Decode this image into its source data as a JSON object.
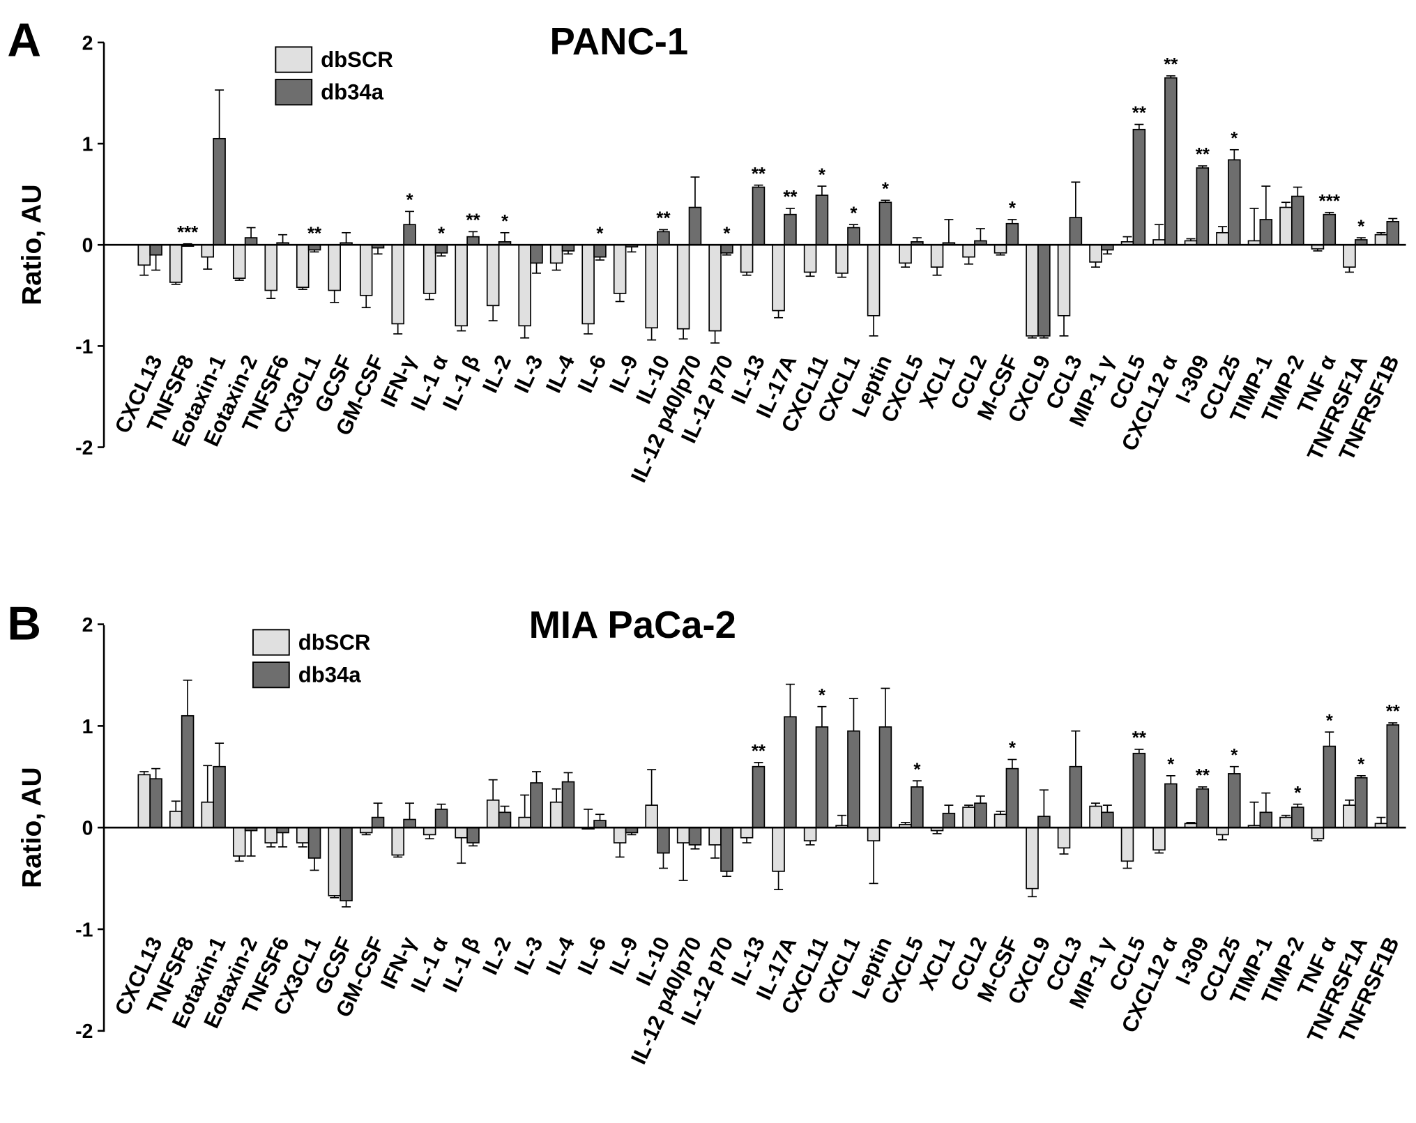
{
  "colors": {
    "dbSCR": "#e0e0e0",
    "db34a": "#6e6e6e",
    "edge": "#000000"
  },
  "chart_data": [
    {
      "type": "bar",
      "panel": "A",
      "title": "PANC-1",
      "ylabel": "Ratio, AU",
      "ylim": [
        -2,
        2
      ],
      "yticks": [
        -2,
        -1,
        0,
        1,
        2
      ],
      "legend_position": "top-left",
      "categories": [
        "CXCL13",
        "TNFSF8",
        "Eotaxin-1",
        "Eotaxin-2",
        "TNFSF6",
        "CX3CL1",
        "GCSF",
        "GM-CSF",
        "IFN-γ",
        "IL-1 α",
        "IL-1 β",
        "IL-2",
        "IL-3",
        "IL-4",
        "IL-6",
        "IL-9",
        "IL-10",
        "IL-12 p40/p70",
        "IL-12 p70",
        "IL-13",
        "IL-17A",
        "CXCL11",
        "CXCL1",
        "Leptin",
        "CXCL5",
        "XCL1",
        "CCL2",
        "M-CSF",
        "CXCL9",
        "CCL3",
        "MIP-1 γ",
        "CCL5",
        "CXCL12 α",
        "I-309",
        "CCL25",
        "TIMP-1",
        "TIMP-2",
        "TNF α",
        "TNFRSF1A",
        "TNFRSF1B"
      ],
      "series": [
        {
          "name": "dbSCR",
          "values": [
            -0.2,
            -0.37,
            -0.12,
            -0.33,
            -0.45,
            -0.42,
            -0.45,
            -0.5,
            -0.78,
            -0.48,
            -0.8,
            -0.6,
            -0.8,
            -0.18,
            -0.78,
            -0.48,
            -0.82,
            -0.83,
            -0.85,
            -0.27,
            -0.65,
            -0.27,
            -0.28,
            -0.7,
            -0.18,
            -0.22,
            -0.12,
            -0.08,
            -0.9,
            -0.7,
            -0.17,
            0.03,
            0.05,
            0.04,
            0.12,
            0.04,
            0.37,
            -0.04,
            -0.22,
            0.1
          ],
          "errors": [
            0.1,
            0.02,
            0.12,
            0.02,
            0.08,
            0.02,
            0.12,
            0.12,
            0.1,
            0.06,
            0.05,
            0.15,
            0.12,
            0.07,
            0.1,
            0.08,
            0.12,
            0.1,
            0.12,
            0.03,
            0.07,
            0.04,
            0.04,
            0.2,
            0.04,
            0.08,
            0.07,
            0.02,
            0.02,
            0.2,
            0.05,
            0.05,
            0.15,
            0.02,
            0.06,
            0.32,
            0.05,
            0.02,
            0.05,
            0.02
          ]
        },
        {
          "name": "db34a",
          "values": [
            -0.1,
            0,
            1.05,
            0.07,
            0.02,
            -0.05,
            0.02,
            -0.03,
            0.2,
            -0.08,
            0.08,
            0.03,
            -0.18,
            -0.06,
            -0.12,
            -0.02,
            0.13,
            0.37,
            -0.08,
            0.57,
            0.3,
            0.49,
            0.17,
            0.42,
            0.03,
            0.02,
            0.04,
            0.21,
            -0.9,
            0.27,
            -0.05,
            1.14,
            1.65,
            0.76,
            0.84,
            0.25,
            0.48,
            0.3,
            0.05,
            0.23
          ],
          "errors": [
            0.15,
            0.01,
            0.48,
            0.1,
            0.08,
            0.02,
            0.1,
            0.06,
            0.13,
            0.03,
            0.05,
            0.09,
            0.1,
            0.03,
            0.03,
            0.05,
            0.02,
            0.3,
            0.02,
            0.02,
            0.06,
            0.09,
            0.03,
            0.02,
            0.04,
            0.23,
            0.12,
            0.04,
            0.02,
            0.35,
            0.04,
            0.05,
            0.02,
            0.02,
            0.1,
            0.33,
            0.09,
            0.02,
            0.02,
            0.03
          ]
        }
      ],
      "significance": [
        "",
        "***",
        "",
        "",
        "",
        "**",
        "",
        "",
        "*",
        "*",
        "**",
        "*",
        "",
        "",
        "*",
        "",
        "**",
        "",
        "*",
        "**",
        "**",
        "*",
        "*",
        "*",
        "",
        "",
        "",
        "*",
        "",
        "",
        "",
        "**",
        "**",
        "**",
        "*",
        "",
        "",
        "***",
        "*",
        ""
      ]
    },
    {
      "type": "bar",
      "panel": "B",
      "title": "MIA PaCa-2",
      "ylabel": "Ratio, AU",
      "ylim": [
        -2,
        2
      ],
      "yticks": [
        -2,
        -1,
        0,
        1,
        2
      ],
      "legend_position": "top-left",
      "categories": [
        "CXCL13",
        "TNFSF8",
        "Eotaxin-1",
        "Eotaxin-2",
        "TNFSF6",
        "CX3CL1",
        "GCSF",
        "GM-CSF",
        "IFN-γ",
        "IL-1 α",
        "IL-1 β",
        "IL-2",
        "IL-3",
        "IL-4",
        "IL-6",
        "IL-9",
        "IL-10",
        "IL-12 p40/p70",
        "IL-12 p70",
        "IL-13",
        "IL-17A",
        "CXCL11",
        "CXCL1",
        "Leptin",
        "CXCL5",
        "XCL1",
        "CCL2",
        "M-CSF",
        "CXCL9",
        "CCL3",
        "MIP-1 γ",
        "CCL5",
        "CXCL12 α",
        "I-309",
        "CCL25",
        "TIMP-1",
        "TIMP-2",
        "TNF α",
        "TNFRSF1A",
        "TNFRSF1B"
      ],
      "series": [
        {
          "name": "dbSCR",
          "values": [
            0.52,
            0.16,
            0.25,
            -0.28,
            -0.15,
            -0.15,
            -0.67,
            -0.05,
            -0.27,
            -0.07,
            -0.1,
            0.27,
            0.1,
            0.25,
            0,
            -0.15,
            0.22,
            -0.15,
            -0.17,
            -0.1,
            -0.43,
            -0.13,
            0.02,
            -0.13,
            0.03,
            -0.03,
            0.2,
            0.13,
            -0.6,
            -0.2,
            0.21,
            -0.33,
            -0.22,
            0.04,
            -0.07,
            0.02,
            0.1,
            -0.11,
            0.22,
            0.04
          ],
          "errors": [
            0.03,
            0.1,
            0.36,
            0.05,
            0.04,
            0.04,
            0.02,
            0.02,
            0.02,
            0.04,
            0.25,
            0.2,
            0.22,
            0.13,
            0.18,
            0.14,
            0.35,
            0.37,
            0.13,
            0.05,
            0.18,
            0.04,
            0.1,
            0.42,
            0.02,
            0.03,
            0.02,
            0.03,
            0.08,
            0.06,
            0.03,
            0.07,
            0.03,
            0.01,
            0.05,
            0.23,
            0.02,
            0.02,
            0.05,
            0.06
          ]
        },
        {
          "name": "db34a",
          "values": [
            0.48,
            1.1,
            0.6,
            -0.03,
            -0.05,
            -0.3,
            -0.72,
            0.1,
            0.08,
            0.18,
            -0.15,
            0.15,
            0.44,
            0.45,
            0.07,
            -0.05,
            -0.25,
            -0.17,
            -0.43,
            0.6,
            1.09,
            0.99,
            0.95,
            0.99,
            0.4,
            0.14,
            0.24,
            0.58,
            0.11,
            0.6,
            0.15,
            0.73,
            0.43,
            0.38,
            0.53,
            0.15,
            0.2,
            0.8,
            0.49,
            1.01
          ],
          "errors": [
            0.1,
            0.35,
            0.23,
            0.25,
            0.14,
            0.12,
            0.06,
            0.14,
            0.16,
            0.05,
            0.03,
            0.06,
            0.11,
            0.09,
            0.06,
            0.02,
            0.15,
            0.04,
            0.05,
            0.04,
            0.32,
            0.2,
            0.32,
            0.38,
            0.06,
            0.08,
            0.07,
            0.09,
            0.26,
            0.35,
            0.07,
            0.04,
            0.08,
            0.02,
            0.07,
            0.19,
            0.03,
            0.14,
            0.02,
            0.02
          ]
        }
      ],
      "significance": [
        "",
        "",
        "",
        "",
        "",
        "",
        "",
        "",
        "",
        "",
        "",
        "",
        "",
        "",
        "",
        "",
        "",
        "",
        "",
        "**",
        "",
        "*",
        "",
        "",
        "*",
        "",
        "",
        "*",
        "",
        "",
        "",
        "**",
        "*",
        "**",
        "*",
        "",
        "*",
        "*",
        "*",
        "**"
      ]
    }
  ],
  "panel_letters": [
    "A",
    "B"
  ]
}
